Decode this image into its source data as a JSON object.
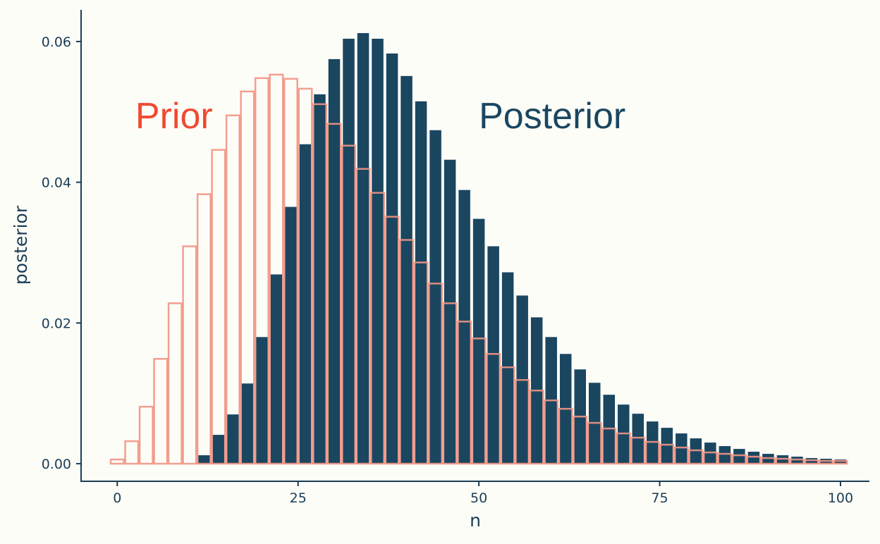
{
  "chart_data": {
    "type": "bar",
    "xlabel": "n",
    "ylabel": "posterior",
    "xlim": [
      -5,
      104
    ],
    "ylim": [
      -0.0025,
      0.0645
    ],
    "x_ticks": [
      0,
      25,
      50,
      75,
      100
    ],
    "x_tick_labels": [
      "0",
      "25",
      "50",
      "75",
      "100"
    ],
    "y_ticks": [
      0,
      0.02,
      0.04,
      0.06
    ],
    "y_tick_labels": [
      "0.00",
      "0.02",
      "0.04",
      "0.06"
    ],
    "grid": false,
    "bin_width": 2,
    "annotations": [
      {
        "text": "Prior",
        "x": 2.5,
        "y": 0.0495,
        "color": "#f04a32"
      },
      {
        "text": "Posterior",
        "x": 50,
        "y": 0.0495,
        "color": "#1a4660"
      }
    ],
    "series": [
      {
        "name": "Posterior",
        "style": "filled",
        "color": "#1a4660",
        "x": [
          12,
          14,
          16,
          18,
          20,
          22,
          24,
          26,
          28,
          30,
          32,
          34,
          36,
          38,
          40,
          42,
          44,
          46,
          48,
          50,
          52,
          54,
          56,
          58,
          60,
          62,
          64,
          66,
          68,
          70,
          72,
          74,
          76,
          78,
          80,
          82,
          84,
          86,
          88,
          90,
          92,
          94,
          96,
          98,
          100
        ],
        "values": [
          0.0012,
          0.0041,
          0.007,
          0.0114,
          0.018,
          0.0269,
          0.0365,
          0.0454,
          0.0525,
          0.0575,
          0.0604,
          0.0612,
          0.0604,
          0.0583,
          0.0551,
          0.0515,
          0.0474,
          0.0432,
          0.0389,
          0.0348,
          0.0309,
          0.0272,
          0.0239,
          0.0208,
          0.018,
          0.0156,
          0.0134,
          0.0115,
          0.0098,
          0.0084,
          0.0071,
          0.006,
          0.0051,
          0.0043,
          0.0036,
          0.003,
          0.0025,
          0.0021,
          0.0017,
          0.0014,
          0.0012,
          0.001,
          0.0008,
          0.0007,
          0.0006
        ]
      },
      {
        "name": "Prior",
        "style": "outline",
        "color": "#f29584",
        "x": [
          0,
          2,
          4,
          6,
          8,
          10,
          12,
          14,
          16,
          18,
          20,
          22,
          24,
          26,
          28,
          30,
          32,
          34,
          36,
          38,
          40,
          42,
          44,
          46,
          48,
          50,
          52,
          54,
          56,
          58,
          60,
          62,
          64,
          66,
          68,
          70,
          72,
          74,
          76,
          78,
          80,
          82,
          84,
          86,
          88,
          90,
          92,
          94,
          96,
          98,
          100
        ],
        "values": [
          0.0006,
          0.0032,
          0.0081,
          0.0149,
          0.0228,
          0.0309,
          0.0383,
          0.0446,
          0.0495,
          0.0529,
          0.0548,
          0.0553,
          0.0547,
          0.0533,
          0.0511,
          0.0483,
          0.0452,
          0.0419,
          0.0385,
          0.0351,
          0.0318,
          0.0286,
          0.0256,
          0.0228,
          0.0202,
          0.0178,
          0.0156,
          0.0137,
          0.0119,
          0.0104,
          0.009,
          0.0078,
          0.0067,
          0.0058,
          0.005,
          0.0043,
          0.0037,
          0.0031,
          0.0027,
          0.0023,
          0.0019,
          0.0016,
          0.0014,
          0.0012,
          0.001,
          0.0008,
          0.0007,
          0.0006,
          0.0005,
          0.0004,
          0.0004
        ]
      }
    ]
  }
}
